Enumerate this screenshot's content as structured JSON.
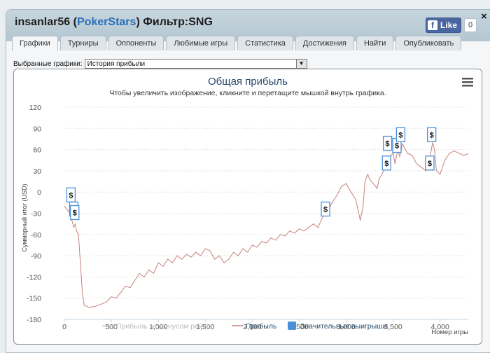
{
  "window": {
    "title_user": "insanlar56",
    "title_open": "(",
    "title_site": "PokerStars",
    "title_close": ")",
    "title_filter": "Фильтр:SNG",
    "close_glyph": "×"
  },
  "facebook": {
    "like_label": "Like",
    "count": "0",
    "icon": "f"
  },
  "tabs": [
    {
      "label": "Графики",
      "active": true
    },
    {
      "label": "Турниры"
    },
    {
      "label": "Оппоненты"
    },
    {
      "label": "Любимые игры"
    },
    {
      "label": "Статистика"
    },
    {
      "label": "Достижения"
    },
    {
      "label": "Найти"
    },
    {
      "label": "Опубликовать"
    }
  ],
  "selector": {
    "label": "Выбранные графики:",
    "value": "История прибыли",
    "arrow_icon": "chevron-down-icon"
  },
  "menu_icon": "hamburger-icon",
  "colors": {
    "profit_line": "#c6827d",
    "rake_line": "#c8c8c8",
    "big_win_marker": "#4a90d9"
  },
  "chart_data": {
    "type": "line",
    "title": "Общая прибыль",
    "subtitle": "Чтобы увеличить изображение, кликните и перетащите мышкой внутрь графика.",
    "xlabel": "Номер игры",
    "ylabel": "Суммарный итог (USD)",
    "xlim": [
      0,
      4300
    ],
    "ylim": [
      -180,
      120
    ],
    "x_ticks": [
      "0",
      "500",
      "1,000",
      "1,500",
      "2,000",
      "2,500",
      "3,000",
      "3,500",
      "4,000"
    ],
    "y_ticks": [
      "120",
      "90",
      "60",
      "30",
      "0",
      "-30",
      "-60",
      "-90",
      "-120",
      "-150",
      "-180"
    ],
    "grid": true,
    "legend_position": "bottom-center",
    "series": [
      {
        "name": "Прибыль за минусом рейка",
        "x": [],
        "y": []
      },
      {
        "name": "Прибыль",
        "x": [
          0,
          60,
          80,
          100,
          115,
          130,
          150,
          170,
          190,
          210,
          260,
          320,
          400,
          450,
          500,
          550,
          600,
          650,
          700,
          750,
          800,
          850,
          900,
          950,
          1000,
          1050,
          1100,
          1150,
          1200,
          1250,
          1300,
          1350,
          1400,
          1450,
          1500,
          1550,
          1600,
          1650,
          1700,
          1750,
          1800,
          1850,
          1900,
          1950,
          2000,
          2050,
          2100,
          2150,
          2200,
          2250,
          2300,
          2350,
          2400,
          2450,
          2500,
          2550,
          2600,
          2650,
          2700,
          2750,
          2780,
          2800,
          2850,
          2900,
          2950,
          3000,
          3050,
          3100,
          3150,
          3180,
          3200,
          3230,
          3250,
          3300,
          3330,
          3350,
          3400,
          3420,
          3440,
          3460,
          3500,
          3520,
          3550,
          3570,
          3600,
          3650,
          3700,
          3750,
          3800,
          3850,
          3880,
          3900,
          3920,
          3940,
          3960,
          4000,
          4050,
          4100,
          4150,
          4200,
          4250,
          4300
        ],
        "y": [
          -20,
          -30,
          -40,
          -50,
          -45,
          -55,
          -60,
          -100,
          -140,
          -160,
          -163,
          -162,
          -158,
          -155,
          -148,
          -150,
          -142,
          -133,
          -135,
          -125,
          -115,
          -120,
          -110,
          -115,
          -100,
          -105,
          -95,
          -100,
          -90,
          -95,
          -88,
          -92,
          -85,
          -90,
          -80,
          -83,
          -95,
          -90,
          -100,
          -95,
          -85,
          -90,
          -80,
          -85,
          -75,
          -78,
          -70,
          -72,
          -65,
          -68,
          -60,
          -62,
          -55,
          -58,
          -52,
          -55,
          -50,
          -45,
          -50,
          -35,
          -20,
          -28,
          -15,
          -5,
          8,
          12,
          0,
          -10,
          -40,
          -20,
          15,
          25,
          18,
          10,
          5,
          18,
          30,
          35,
          45,
          50,
          55,
          40,
          60,
          50,
          68,
          55,
          52,
          40,
          35,
          30,
          40,
          55,
          70,
          60,
          30,
          25,
          45,
          55,
          58,
          55,
          52,
          54
        ]
      },
      {
        "name": "Значительные выигрыши",
        "x": [
          70,
          100,
          110,
          2780,
          3430,
          3440,
          3540,
          3580,
          3890,
          3910
        ],
        "y": [
          -5,
          -25,
          -30,
          -25,
          40,
          68,
          65,
          80,
          40,
          80
        ],
        "marker": "$"
      }
    ]
  }
}
